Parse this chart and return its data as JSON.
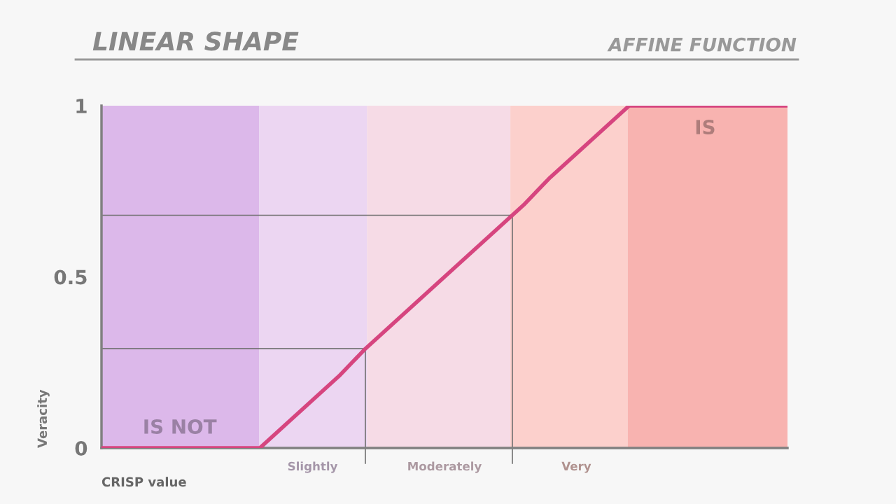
{
  "chart_data": {
    "type": "line",
    "title": "LINEAR SHAPE",
    "subtitle": "AFFINE FUNCTION",
    "xlabel": "CRISP value",
    "ylabel": "Veracity",
    "categories": [
      null,
      null,
      null,
      null,
      null,
      null,
      null,
      null,
      "Slightly",
      null,
      null,
      null,
      null,
      "Moderately",
      null,
      null,
      null,
      null,
      "Very",
      null,
      null,
      null,
      null,
      null,
      null,
      null,
      null
    ],
    "ylim": [
      0,
      1
    ],
    "yticks": [
      0,
      0.5,
      1
    ],
    "grid": false,
    "series": [
      {
        "color": "#d6457f",
        "values": [
          0,
          0,
          0,
          0,
          0,
          0,
          0,
          0.07,
          0.14,
          0.21,
          0.29,
          0.36,
          0.43,
          0.5,
          0.57,
          0.64,
          0.71,
          0.79,
          0.86,
          0.93,
          1,
          1,
          1,
          1,
          1,
          1,
          1
        ]
      }
    ],
    "ref_lines": [
      {
        "axis": "y",
        "value": 0.29,
        "color": "#707070"
      },
      {
        "axis": "y",
        "value": 0.68,
        "color": "#707070"
      }
    ],
    "annotations": [
      "IS NOT",
      "IS"
    ]
  }
}
